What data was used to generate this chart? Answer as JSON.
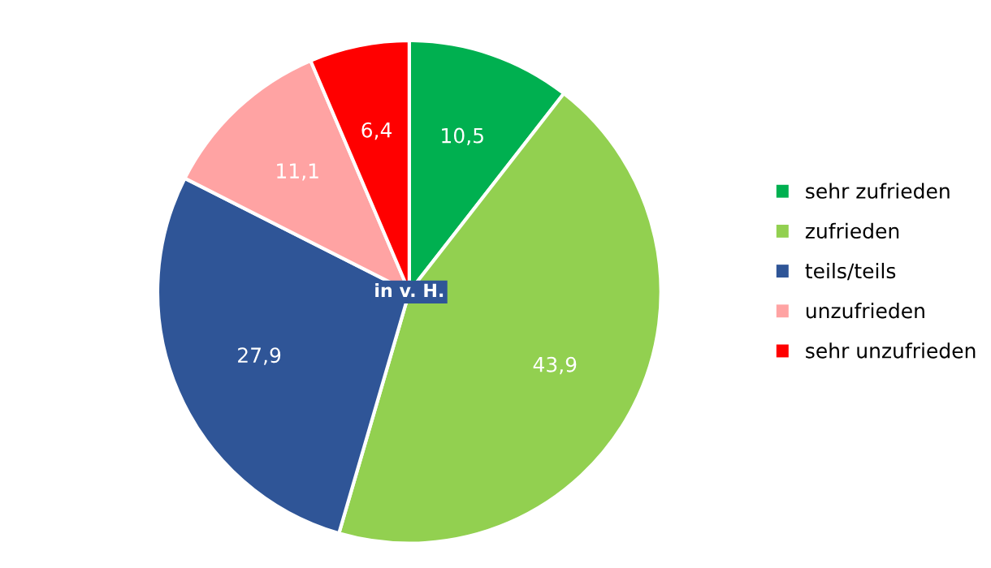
{
  "chart_data": {
    "type": "pie",
    "categories": [
      "sehr zufrieden",
      "zufrieden",
      "teils/teils",
      "unzufrieden",
      "sehr unzufrieden"
    ],
    "values": [
      10.5,
      43.9,
      27.9,
      11.1,
      6.4
    ],
    "value_labels": [
      "10,5",
      "43,9",
      "27,9",
      "11,1",
      "6,4"
    ],
    "colors": [
      "#00b050",
      "#92d050",
      "#2f5597",
      "#ffa3a3",
      "#ff0000"
    ],
    "annotations": [
      "in v. H."
    ],
    "legend": "right"
  }
}
